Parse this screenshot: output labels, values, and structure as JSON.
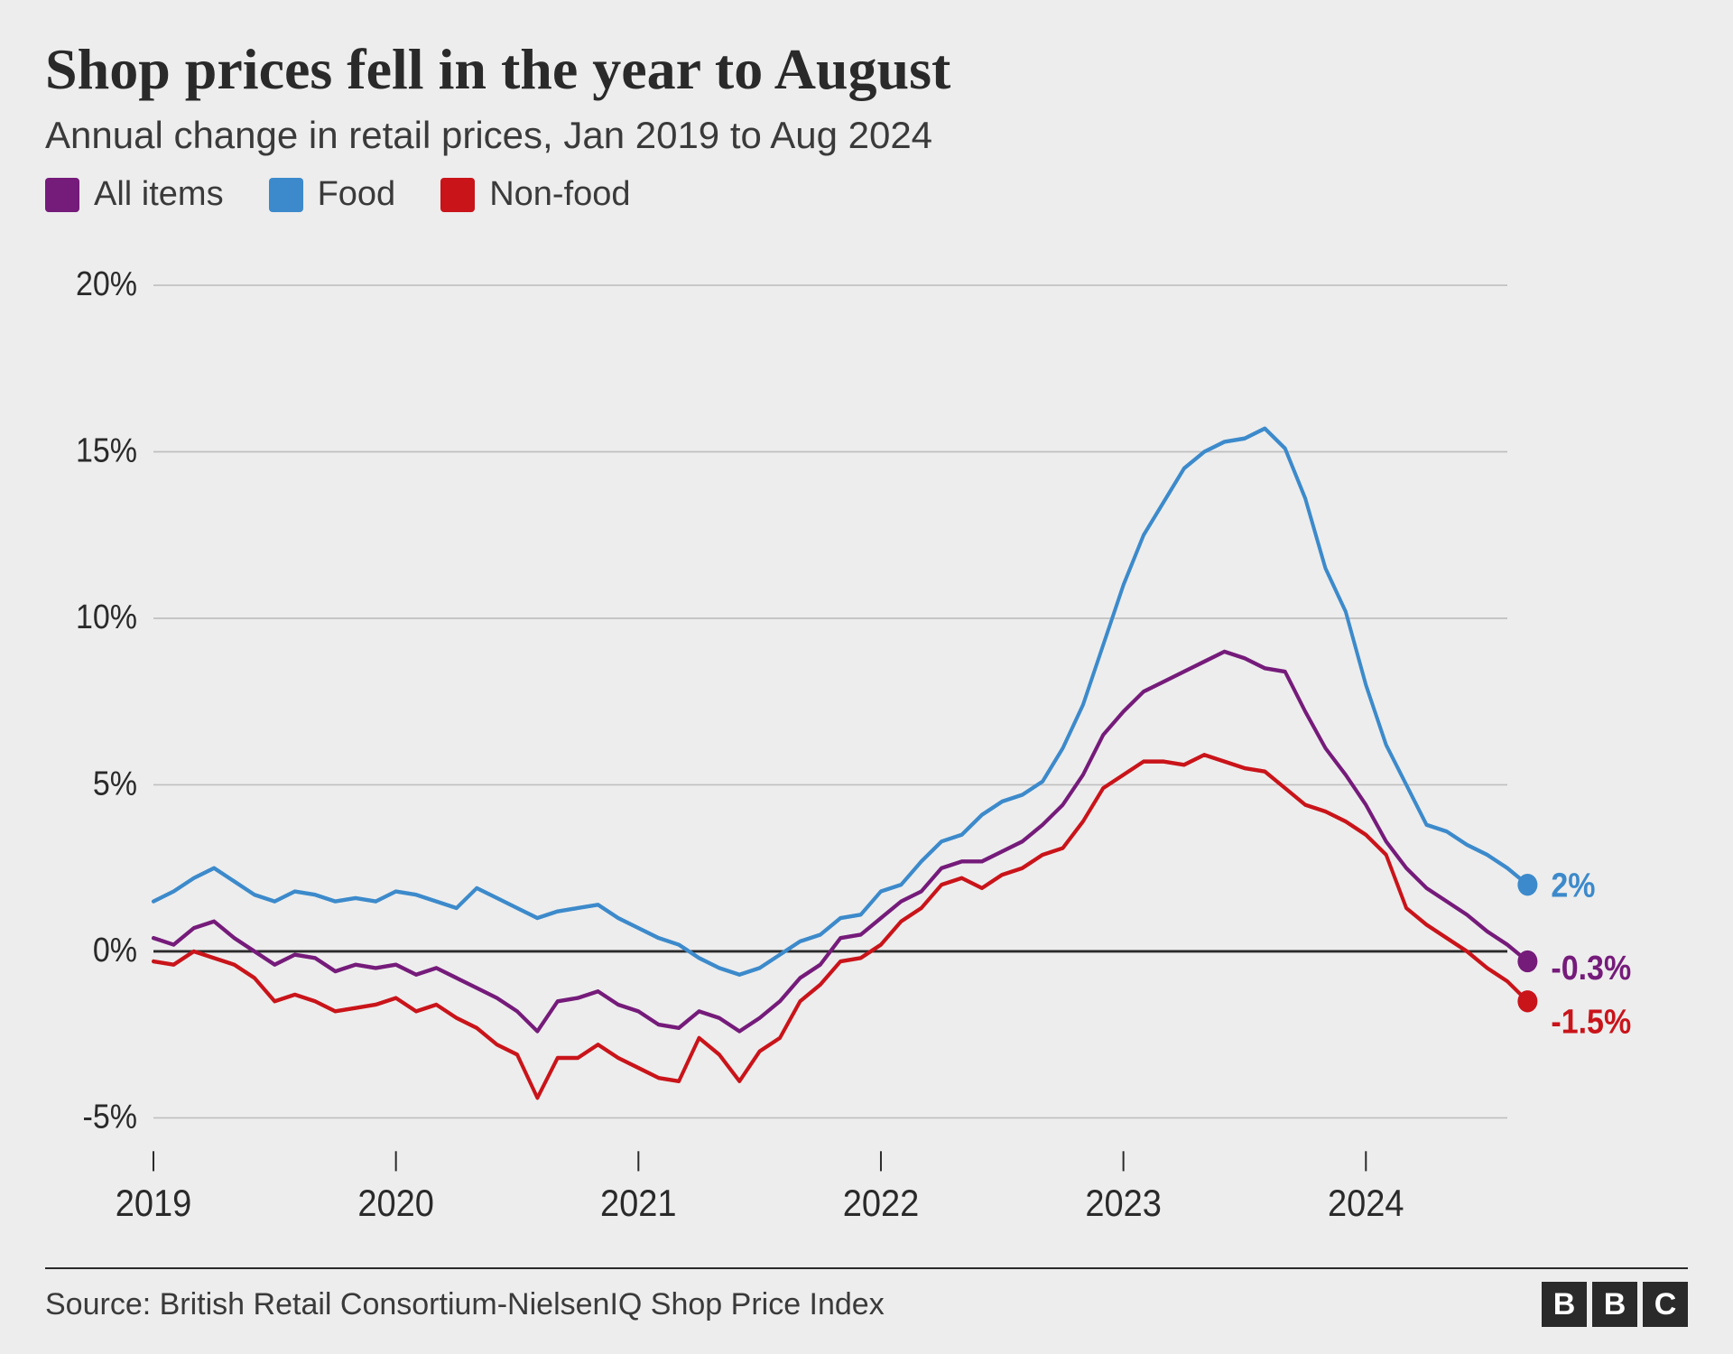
{
  "title": "Shop prices fell in the year to August",
  "subtitle": "Annual change in retail prices, Jan 2019 to Aug 2024",
  "source": "Source: British Retail Consortium-NielsenIQ Shop Price Index",
  "brand": [
    "B",
    "B",
    "C"
  ],
  "colors": {
    "background": "#ededed",
    "text": "#2a2a2a",
    "grid": "#bfbfbf",
    "zero_line": "#2a2a2a",
    "all_items": "#751b7a",
    "food": "#3c8acb",
    "non_food": "#c9141a"
  },
  "legend": [
    {
      "label": "All items",
      "color_key": "all_items"
    },
    {
      "label": "Food",
      "color_key": "food"
    },
    {
      "label": "Non-food",
      "color_key": "non_food"
    }
  ],
  "chart": {
    "type": "line",
    "line_width": 4,
    "end_marker_radius": 11,
    "x_start_year": 2019,
    "x_start_month": 1,
    "x_end_year": 2024,
    "x_end_month": 8,
    "x_tick_years": [
      2019,
      2020,
      2021,
      2022,
      2023,
      2024
    ],
    "ylim": [
      -6,
      21
    ],
    "y_ticks": [
      -5,
      0,
      5,
      10,
      15,
      20
    ],
    "y_tick_labels": [
      "-5%",
      "0%",
      "5%",
      "10%",
      "15%",
      "20%"
    ],
    "y_tick_fontsize": 34,
    "x_tick_fontsize": 38,
    "end_labels": [
      {
        "text": "2%",
        "color_key": "food",
        "value": 2.0
      },
      {
        "text": "-0.3%",
        "color_key": "all_items",
        "value": -0.3
      },
      {
        "text": "-1.5%",
        "color_key": "non_food",
        "value": -1.5
      }
    ],
    "series": {
      "food": [
        1.5,
        1.8,
        2.2,
        2.5,
        2.1,
        1.7,
        1.5,
        1.8,
        1.7,
        1.5,
        1.6,
        1.5,
        1.8,
        1.7,
        1.5,
        1.3,
        1.9,
        1.6,
        1.3,
        1.0,
        1.2,
        1.3,
        1.4,
        1.0,
        0.7,
        0.4,
        0.2,
        -0.2,
        -0.5,
        -0.7,
        -0.5,
        -0.1,
        0.3,
        0.5,
        1.0,
        1.1,
        1.8,
        2.0,
        2.7,
        3.3,
        3.5,
        4.1,
        4.5,
        4.7,
        5.1,
        6.1,
        7.4,
        9.2,
        11.0,
        12.5,
        13.5,
        14.5,
        15.0,
        15.3,
        15.4,
        15.7,
        15.1,
        13.6,
        11.5,
        10.2,
        8.0,
        6.2,
        5.0,
        3.8,
        3.6,
        3.2,
        2.9,
        2.5,
        2.0
      ],
      "all_items": [
        0.4,
        0.2,
        0.7,
        0.9,
        0.4,
        0.0,
        -0.4,
        -0.1,
        -0.2,
        -0.6,
        -0.4,
        -0.5,
        -0.4,
        -0.7,
        -0.5,
        -0.8,
        -1.1,
        -1.4,
        -1.8,
        -2.4,
        -1.5,
        -1.4,
        -1.2,
        -1.6,
        -1.8,
        -2.2,
        -2.3,
        -1.8,
        -2.0,
        -2.4,
        -2.0,
        -1.5,
        -0.8,
        -0.4,
        0.4,
        0.5,
        1.0,
        1.5,
        1.8,
        2.5,
        2.7,
        2.7,
        3.0,
        3.3,
        3.8,
        4.4,
        5.3,
        6.5,
        7.2,
        7.8,
        8.1,
        8.4,
        8.7,
        9.0,
        8.8,
        8.5,
        8.4,
        7.2,
        6.1,
        5.3,
        4.4,
        3.3,
        2.5,
        1.9,
        1.5,
        1.1,
        0.6,
        0.2,
        -0.3
      ],
      "non_food": [
        -0.3,
        -0.4,
        0.0,
        -0.2,
        -0.4,
        -0.8,
        -1.5,
        -1.3,
        -1.5,
        -1.8,
        -1.7,
        -1.6,
        -1.4,
        -1.8,
        -1.6,
        -2.0,
        -2.3,
        -2.8,
        -3.1,
        -4.4,
        -3.2,
        -3.2,
        -2.8,
        -3.2,
        -3.5,
        -3.8,
        -3.9,
        -2.6,
        -3.1,
        -3.9,
        -3.0,
        -2.6,
        -1.5,
        -1.0,
        -0.3,
        -0.2,
        0.2,
        0.9,
        1.3,
        2.0,
        2.2,
        1.9,
        2.3,
        2.5,
        2.9,
        3.1,
        3.9,
        4.9,
        5.3,
        5.7,
        5.7,
        5.6,
        5.9,
        5.7,
        5.5,
        5.4,
        4.9,
        4.4,
        4.2,
        3.9,
        3.5,
        2.9,
        1.3,
        0.8,
        0.4,
        0.0,
        -0.5,
        -0.9,
        -1.5
      ]
    }
  }
}
